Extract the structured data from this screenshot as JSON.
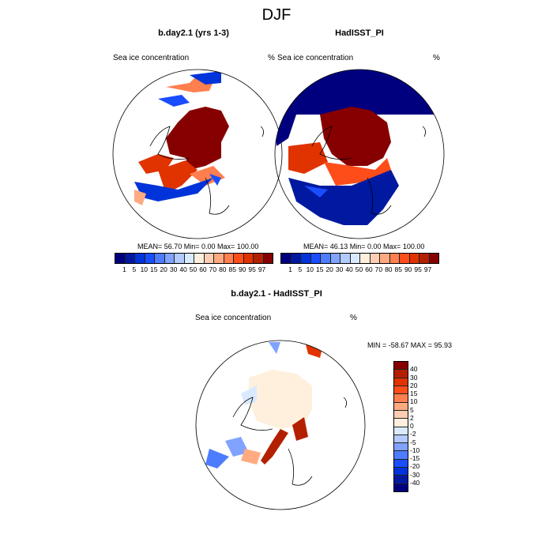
{
  "title": "DJF",
  "panels": [
    {
      "title": "b.day2.1 (yrs 1-3)",
      "variable": "Sea ice concentration",
      "units": "%",
      "stats": "MEAN=  56.70  Min=   0.00  Max= 100.00"
    },
    {
      "title": "HadISST_PI",
      "variable": "Sea ice concentration",
      "units": "%",
      "stats": "MEAN=  46.13  Min=   0.00  Max= 100.00"
    }
  ],
  "diff_panel": {
    "title": "b.day2.1 - HadISST_PI",
    "variable": "Sea ice concentration",
    "units": "%",
    "stats": "MIN = -58.67 MAX =  95.93"
  },
  "colorbar_levels": [
    "1",
    "5",
    "10",
    "15",
    "20",
    "30",
    "40",
    "50",
    "60",
    "70",
    "80",
    "85",
    "90",
    "95",
    "97"
  ],
  "diff_levels": [
    "40",
    "30",
    "20",
    "15",
    "10",
    "5",
    "2",
    "0",
    "-2",
    "-5",
    "-10",
    "-15",
    "-20",
    "-30",
    "-40"
  ],
  "palette": [
    "#00007f",
    "#0019a0",
    "#0033d9",
    "#1a4dff",
    "#4d7cff",
    "#80a3ff",
    "#b3caff",
    "#d9eaff",
    "#fff0de",
    "#ffcdb3",
    "#ffaa80",
    "#ff7f4f",
    "#ff4d1a",
    "#e03300",
    "#b32000",
    "#870000"
  ]
}
